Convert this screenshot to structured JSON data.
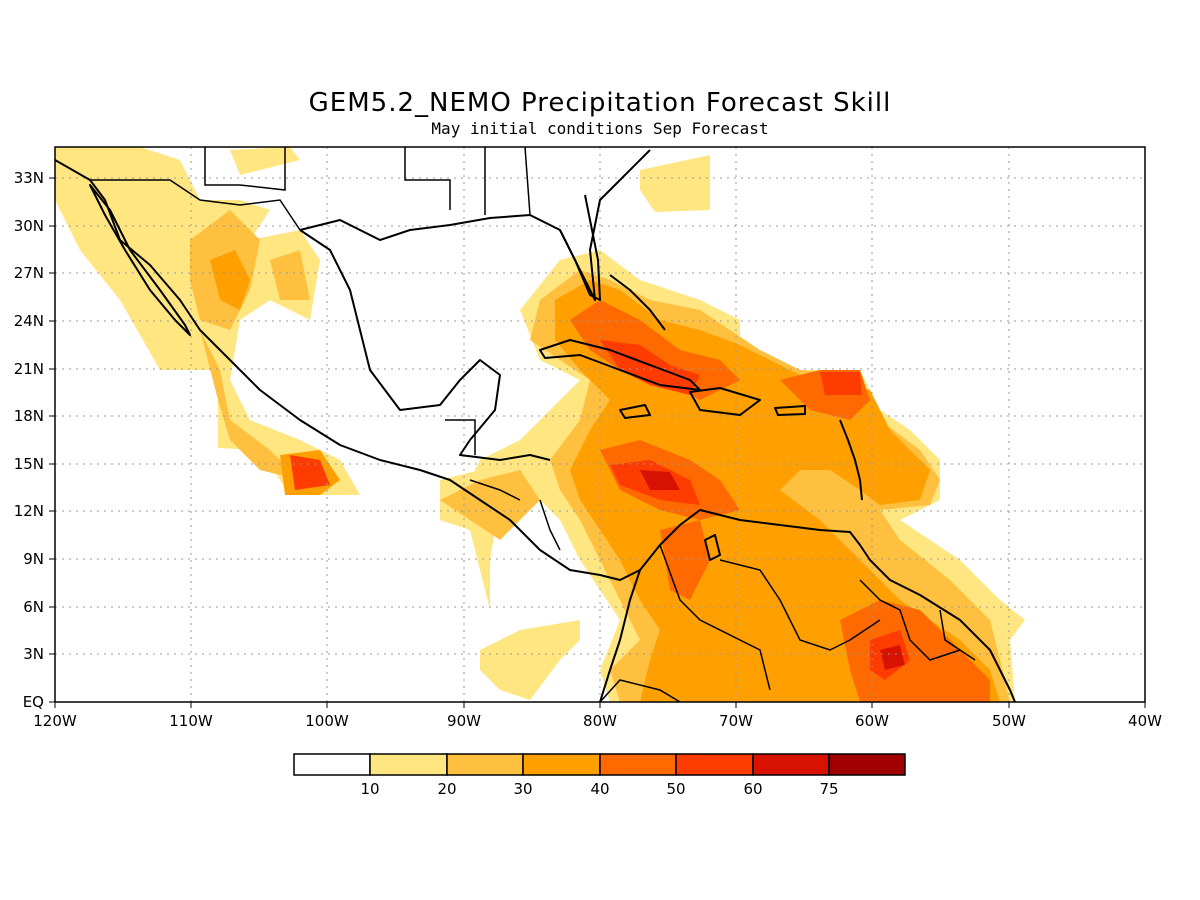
{
  "title": "GEM5.2_NEMO Precipitation Forecast Skill",
  "subtitle": "May initial conditions  Sep Forecast",
  "chart_data": {
    "type": "heatmap",
    "x_ticks": [
      "120W",
      "110W",
      "100W",
      "90W",
      "80W",
      "70W",
      "60W",
      "50W",
      "40W"
    ],
    "y_ticks": [
      "EQ",
      "3N",
      "6N",
      "9N",
      "12N",
      "15N",
      "18N",
      "21N",
      "24N",
      "27N",
      "30N",
      "33N"
    ],
    "xlim": [
      -120,
      -40
    ],
    "ylim": [
      0,
      35
    ],
    "legend": {
      "labels": [
        "10",
        "20",
        "30",
        "40",
        "50",
        "60",
        "75"
      ],
      "colors": [
        "#ffffff",
        "#ffe680",
        "#ffc040",
        "#ffa000",
        "#ff6a00",
        "#ff3c00",
        "#d81200",
        "#a00000"
      ]
    },
    "grid": true
  }
}
